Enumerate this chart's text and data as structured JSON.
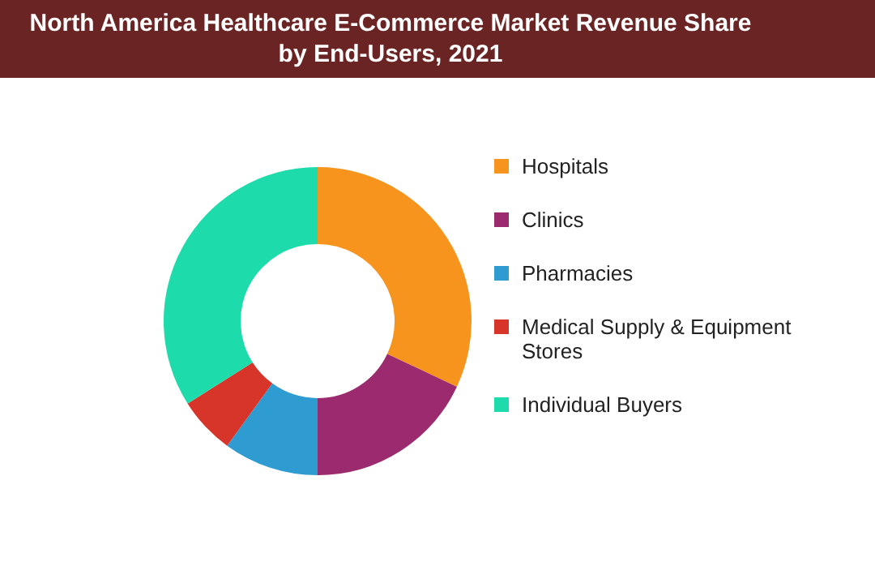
{
  "chart_data": {
    "type": "donut",
    "title": "North America Healthcare E-Commerce Market Revenue Share by End-Users, 2021",
    "categories": [
      "Hospitals",
      "Clinics",
      "Pharmacies",
      "Medical Supply & Equipment Stores",
      "Individual Buyers"
    ],
    "values": [
      32,
      18,
      10,
      6,
      34
    ],
    "colors": [
      "#f7941d",
      "#9b2a6e",
      "#2e9bd1",
      "#d7342a",
      "#1ddbaa"
    ],
    "legend": "right"
  }
}
